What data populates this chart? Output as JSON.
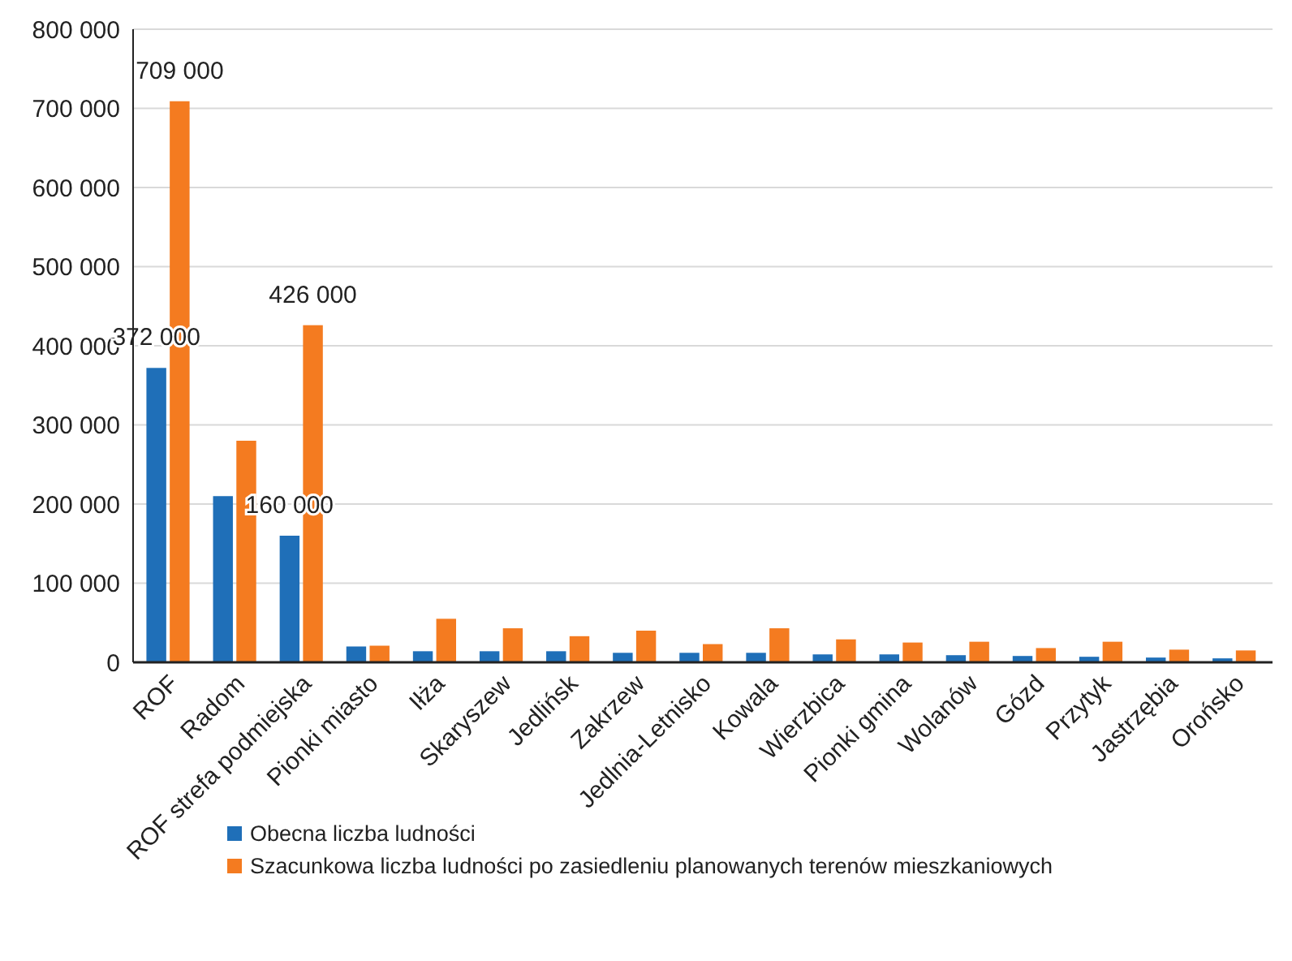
{
  "chart_data": {
    "type": "bar",
    "categories": [
      "ROF",
      "Radom",
      "ROF strefa podmiejska",
      "Pionki miasto",
      "Iłża",
      "Skaryszew",
      "Jedlińsk",
      "Zakrzew",
      "Jedlnia-Letnisko",
      "Kowala",
      "Wierzbica",
      "Pionki gmina",
      "Wolanów",
      "Gózd",
      "Przytyk",
      "Jastrzębia",
      "Orońsko"
    ],
    "series": [
      {
        "name": "Obecna liczba ludności",
        "color": "#1f6fb8",
        "values": [
          372000,
          210000,
          160000,
          20000,
          14000,
          14000,
          14000,
          12000,
          12000,
          12000,
          10000,
          10000,
          9000,
          8000,
          7000,
          6000,
          5000
        ],
        "value_labels": [
          "372 000",
          null,
          "160 000",
          null,
          null,
          null,
          null,
          null,
          null,
          null,
          null,
          null,
          null,
          null,
          null,
          null,
          null
        ]
      },
      {
        "name": "Szacunkowa liczba ludności po zasiedleniu planowanych terenów mieszkaniowych",
        "color": "#f47b20",
        "values": [
          709000,
          280000,
          426000,
          21000,
          55000,
          43000,
          33000,
          40000,
          23000,
          43000,
          29000,
          25000,
          26000,
          18000,
          26000,
          16000,
          15000
        ],
        "value_labels": [
          "709 000",
          null,
          "426 000",
          null,
          null,
          null,
          null,
          null,
          null,
          null,
          null,
          null,
          null,
          null,
          null,
          null,
          null
        ]
      }
    ],
    "ylim": [
      0,
      800000
    ],
    "yticks": [
      {
        "value": 0,
        "label": "0"
      },
      {
        "value": 100000,
        "label": "100 000"
      },
      {
        "value": 200000,
        "label": "200 000"
      },
      {
        "value": 300000,
        "label": "300 000"
      },
      {
        "value": 400000,
        "label": "400 000"
      },
      {
        "value": 500000,
        "label": "500 000"
      },
      {
        "value": 600000,
        "label": "600 000"
      },
      {
        "value": 700000,
        "label": "700 000"
      },
      {
        "value": 800000,
        "label": "800 000"
      }
    ],
    "grid": "y",
    "legend": "bottom left"
  }
}
